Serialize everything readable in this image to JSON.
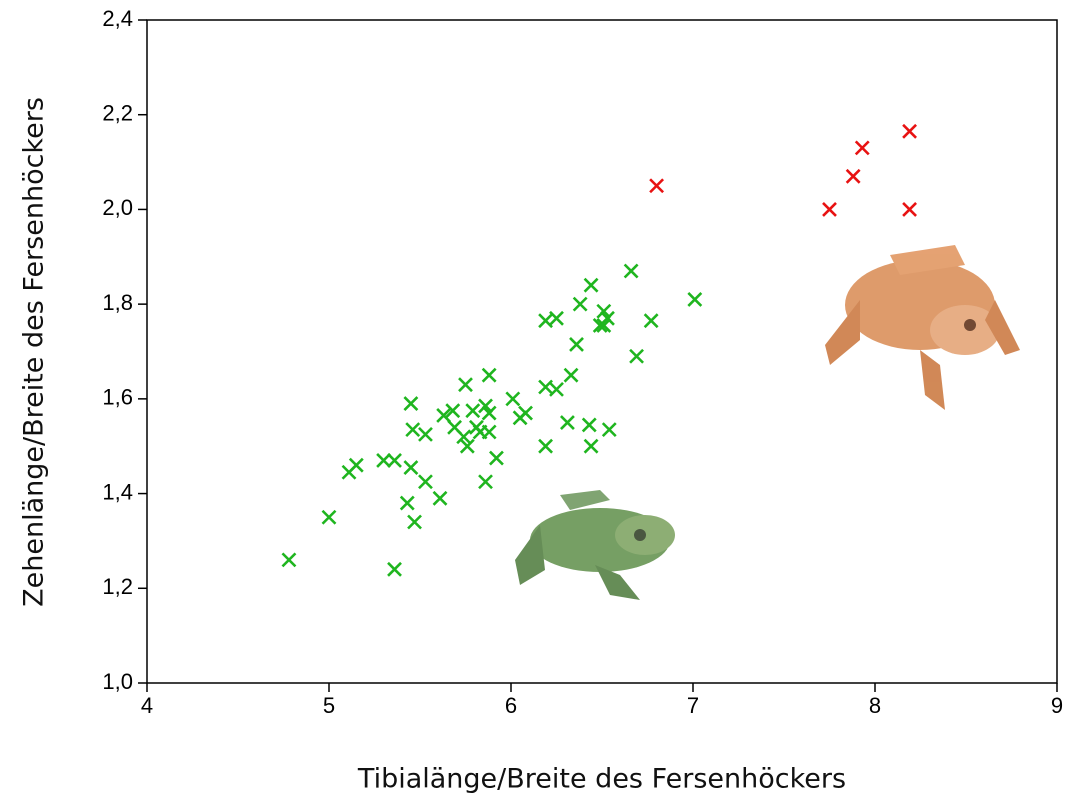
{
  "chart_data": {
    "type": "scatter",
    "xlabel": "Tibialänge/Breite des Fersenhöckers",
    "ylabel": "Zehenlänge/Breite des Fersenhöckers",
    "xlim": [
      4,
      9
    ],
    "ylim": [
      1.0,
      2.4
    ],
    "xticks": [
      4,
      5,
      6,
      7,
      8,
      9
    ],
    "yticks": [
      {
        "value": 1.0,
        "label": "1,0"
      },
      {
        "value": 1.2,
        "label": "1,2"
      },
      {
        "value": 1.4,
        "label": "1,4"
      },
      {
        "value": 1.6,
        "label": "1,6"
      },
      {
        "value": 1.8,
        "label": "1,8"
      },
      {
        "value": 2.0,
        "label": "2,0"
      },
      {
        "value": 2.2,
        "label": "2,2"
      },
      {
        "value": 2.4,
        "label": "2,4"
      }
    ],
    "series": [
      {
        "color": "#1fb51f",
        "x": [
          4.78,
          5.0,
          5.11,
          5.15,
          5.3,
          5.36,
          5.36,
          5.45,
          5.46,
          5.45,
          5.43,
          5.47,
          5.53,
          5.53,
          5.61,
          5.63,
          5.68,
          5.69,
          5.75,
          5.74,
          5.76,
          5.79,
          5.81,
          5.83,
          5.86,
          5.88,
          5.88,
          5.88,
          5.86,
          5.92,
          6.01,
          6.05,
          6.08,
          6.19,
          6.19,
          6.19,
          6.25,
          6.25,
          6.33,
          6.31,
          6.36,
          6.38,
          6.44,
          6.43,
          6.44,
          6.49,
          6.51,
          6.51,
          6.53,
          6.54,
          6.66,
          6.69,
          6.77,
          7.01
        ],
        "values": [
          1.26,
          1.35,
          1.445,
          1.46,
          1.47,
          1.47,
          1.24,
          1.59,
          1.535,
          1.455,
          1.38,
          1.34,
          1.525,
          1.425,
          1.39,
          1.565,
          1.575,
          1.54,
          1.63,
          1.52,
          1.5,
          1.575,
          1.54,
          1.53,
          1.585,
          1.65,
          1.57,
          1.53,
          1.425,
          1.475,
          1.6,
          1.56,
          1.57,
          1.5,
          1.625,
          1.765,
          1.77,
          1.62,
          1.65,
          1.55,
          1.715,
          1.8,
          1.84,
          1.545,
          1.5,
          1.755,
          1.785,
          1.755,
          1.77,
          1.535,
          1.87,
          1.69,
          1.765,
          1.81
        ]
      },
      {
        "color": "#e81212",
        "x": [
          6.8,
          7.75,
          7.88,
          7.93,
          8.19,
          8.19
        ],
        "values": [
          2.05,
          2.0,
          2.07,
          2.13,
          2.165,
          2.0
        ]
      }
    ]
  }
}
